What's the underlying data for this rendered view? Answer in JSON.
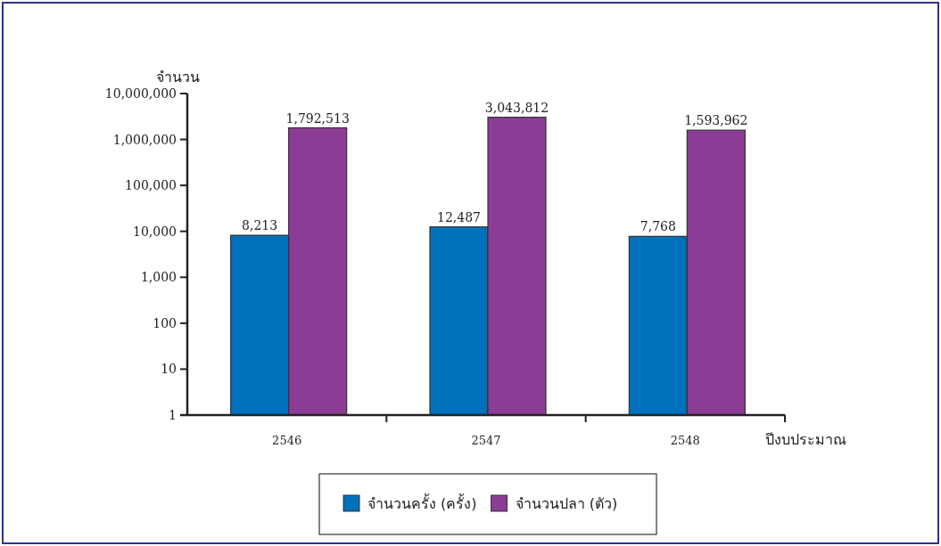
{
  "chart_data": {
    "type": "bar",
    "ylabel": "จำนวน",
    "xlabel": "ปีงบประมาณ",
    "categories": [
      "2546",
      "2547",
      "2548"
    ],
    "series": [
      {
        "name": "จำนวนครั้ง (ครั้ง)",
        "color": "#0070bb",
        "values": [
          8213,
          12487,
          7768
        ],
        "value_labels": [
          "8,213",
          "12,487",
          "7,768"
        ]
      },
      {
        "name": "จำนวนปลา (ตัว)",
        "color": "#8b3d96",
        "values": [
          1792513,
          3043812,
          1593962
        ],
        "value_labels": [
          "1,792,513",
          "3,043,812",
          "1,593,962"
        ]
      }
    ],
    "log": true,
    "ylim": [
      1,
      10000000
    ],
    "yticks": [
      {
        "value": 1,
        "label": "1"
      },
      {
        "value": 10,
        "label": "10"
      },
      {
        "value": 100,
        "label": "100"
      },
      {
        "value": 1000,
        "label": "1,000"
      },
      {
        "value": 10000,
        "label": "10,000"
      },
      {
        "value": 100000,
        "label": "100,000"
      },
      {
        "value": 1000000,
        "label": "1,000,000"
      },
      {
        "value": 10000000,
        "label": "10,000,000"
      }
    ],
    "grid": false,
    "legend": "bottom"
  }
}
